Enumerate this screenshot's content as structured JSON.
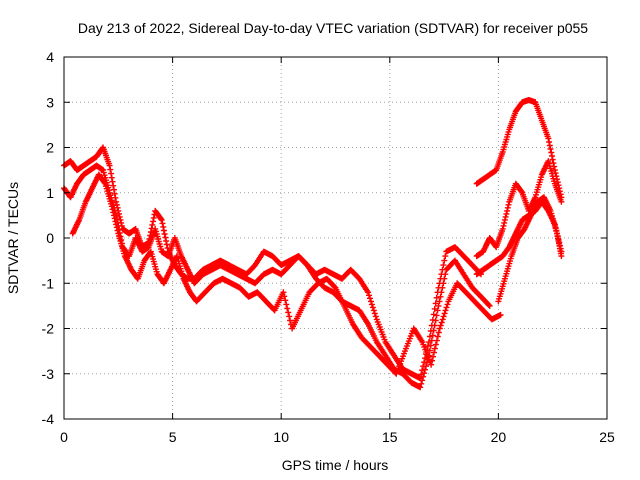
{
  "chart_data": {
    "type": "scatter",
    "title": "Day 213 of 2022, Sidereal Day-to-day VTEC variation (SDTVAR) for receiver p055",
    "xlabel": "GPS time / hours",
    "ylabel": "SDTVAR / TECUs",
    "xlim": [
      0,
      25
    ],
    "ylim": [
      -4,
      4
    ],
    "xticks": [
      0,
      5,
      10,
      15,
      20,
      25
    ],
    "yticks": [
      -4,
      -3,
      -2,
      -1,
      0,
      1,
      2,
      3,
      4
    ],
    "xtick_labels": [
      "0",
      "5",
      "10",
      "15",
      "20",
      "25"
    ],
    "ytick_labels": [
      "-4",
      "-3",
      "-2",
      "-1",
      "0",
      "1",
      "2",
      "3",
      "4"
    ],
    "grid": true,
    "marker": "+",
    "color": "#ff0000",
    "series": [
      {
        "name": "track-1",
        "x": [
          0,
          0.3,
          0.6,
          0.9,
          1.2,
          1.5,
          1.8,
          2.1,
          2.4,
          2.7,
          3.0,
          3.3,
          3.6,
          3.9,
          4.2,
          4.5,
          4.8,
          5.1,
          5.4,
          5.7,
          6.0,
          6.4,
          6.8,
          7.2,
          7.6,
          8.0,
          8.4,
          8.8,
          9.2,
          9.6,
          10.0,
          10.4,
          10.8,
          11.2,
          11.6,
          12.0,
          12.4,
          12.8,
          13.2,
          13.6,
          14.0,
          14.4,
          14.8,
          15.2,
          15.6,
          16.0,
          16.4,
          16.8,
          17.2,
          17.6,
          18.0,
          18.4,
          18.8,
          19.2
        ],
        "y": [
          1.6,
          1.7,
          1.5,
          1.6,
          1.7,
          1.8,
          2.0,
          1.6,
          0.8,
          0.2,
          0.1,
          0.2,
          -0.2,
          -0.1,
          0.6,
          0.4,
          -0.3,
          -0.6,
          -0.8,
          -0.9,
          -0.9,
          -0.7,
          -0.6,
          -0.5,
          -0.6,
          -0.7,
          -0.8,
          -0.6,
          -0.3,
          -0.4,
          -0.6,
          -0.5,
          -0.4,
          -0.6,
          -0.8,
          -0.7,
          -0.8,
          -0.9,
          -0.7,
          -0.9,
          -1.2,
          -1.8,
          -2.3,
          -2.6,
          -2.9,
          -3.0,
          -3.1,
          -2.3,
          -1.2,
          -0.3,
          -0.2,
          -0.4,
          -0.6,
          -0.8
        ]
      },
      {
        "name": "track-2",
        "x": [
          0,
          0.3,
          0.6,
          0.9,
          1.2,
          1.5,
          1.8,
          2.1,
          2.4,
          2.7,
          3.0,
          3.3,
          3.6,
          3.9,
          4.2,
          4.5,
          4.8,
          5.1,
          5.4,
          5.7,
          6.0,
          6.4,
          6.8,
          7.2,
          7.6,
          8.0,
          8.4,
          8.8,
          9.2,
          9.6,
          10.0,
          10.4,
          10.8,
          11.2,
          11.6,
          12.0,
          12.4,
          12.8,
          13.2,
          13.6,
          14.0,
          14.4,
          14.8,
          15.2,
          15.6,
          16.0,
          16.4,
          16.8,
          17.2,
          17.6,
          18.0,
          18.4,
          18.8,
          19.2,
          19.6
        ],
        "y": [
          1.1,
          0.9,
          1.2,
          1.4,
          1.5,
          1.6,
          1.5,
          1.0,
          0.5,
          -0.2,
          -0.4,
          0.0,
          -0.3,
          -0.2,
          0.2,
          -0.3,
          -0.4,
          0.0,
          -0.4,
          -0.7,
          -1.0,
          -0.8,
          -0.7,
          -0.6,
          -0.7,
          -0.8,
          -0.9,
          -1.0,
          -0.8,
          -0.7,
          -0.8,
          -0.6,
          -0.4,
          -0.6,
          -0.9,
          -1.1,
          -1.2,
          -1.4,
          -1.5,
          -1.6,
          -1.9,
          -2.3,
          -2.6,
          -2.9,
          -3.0,
          -3.2,
          -3.3,
          -2.6,
          -1.6,
          -0.7,
          -0.5,
          -0.8,
          -1.1,
          -1.3,
          -1.5
        ]
      },
      {
        "name": "track-3",
        "x": [
          0.4,
          0.7,
          1.0,
          1.3,
          1.6,
          1.9,
          2.2,
          2.5,
          2.8,
          3.1,
          3.4,
          3.7,
          4.0,
          4.3,
          4.6,
          4.9,
          5.2,
          5.5,
          5.8,
          6.1,
          6.5,
          6.9,
          7.3,
          7.7,
          8.1,
          8.5,
          8.9,
          9.3,
          9.7,
          10.1,
          10.5,
          10.9,
          11.3,
          11.7,
          12.1,
          12.5,
          12.9,
          13.3,
          13.7,
          14.1,
          14.5,
          14.9,
          15.3,
          15.7,
          16.1,
          16.5,
          16.9,
          17.3,
          17.7,
          18.1,
          18.5,
          18.9,
          19.3,
          19.7,
          20.1
        ],
        "y": [
          0.1,
          0.4,
          0.8,
          1.1,
          1.4,
          1.2,
          0.7,
          0.1,
          -0.4,
          -0.7,
          -0.9,
          -0.5,
          -0.3,
          -0.8,
          -1.0,
          -0.7,
          -0.4,
          -0.9,
          -1.2,
          -1.4,
          -1.2,
          -1.0,
          -0.9,
          -1.0,
          -1.1,
          -1.3,
          -1.2,
          -1.4,
          -1.6,
          -1.2,
          -2.0,
          -1.6,
          -1.2,
          -1.0,
          -0.9,
          -1.1,
          -1.5,
          -1.9,
          -2.2,
          -2.4,
          -2.6,
          -2.8,
          -3.0,
          -2.5,
          -2.0,
          -2.3,
          -2.8,
          -2.0,
          -1.4,
          -1.0,
          -1.2,
          -1.4,
          -1.6,
          -1.8,
          -1.7
        ]
      },
      {
        "name": "track-4",
        "x": [
          19.0,
          19.3,
          19.6,
          19.9,
          20.2,
          20.5,
          20.8,
          21.1,
          21.4,
          21.7,
          22.0,
          22.3,
          22.6,
          22.9
        ],
        "y": [
          1.2,
          1.3,
          1.4,
          1.5,
          1.9,
          2.4,
          2.8,
          3.0,
          3.05,
          3.0,
          2.6,
          2.2,
          1.5,
          0.9
        ]
      },
      {
        "name": "track-5",
        "x": [
          19.0,
          19.3,
          19.6,
          19.9,
          20.2,
          20.5,
          20.8,
          21.1,
          21.4,
          21.7,
          22.0,
          22.3,
          22.6,
          22.9
        ],
        "y": [
          -0.4,
          -0.3,
          0.0,
          -0.2,
          0.2,
          0.8,
          1.2,
          1.0,
          0.6,
          0.9,
          1.4,
          1.7,
          1.2,
          0.8
        ]
      },
      {
        "name": "track-6",
        "x": [
          19.0,
          19.3,
          19.6,
          19.9,
          20.2,
          20.5,
          20.8,
          21.1,
          21.4,
          21.7,
          22.0,
          22.3,
          22.6,
          22.9
        ],
        "y": [
          -0.8,
          -0.7,
          -0.6,
          -0.5,
          -0.4,
          -0.2,
          0.1,
          0.4,
          0.5,
          0.6,
          0.8,
          0.6,
          0.3,
          -0.3
        ]
      },
      {
        "name": "track-7",
        "x": [
          20.0,
          20.3,
          20.6,
          20.9,
          21.2,
          21.5,
          21.8,
          22.1,
          22.4,
          22.7,
          22.9
        ],
        "y": [
          -1.4,
          -0.9,
          -0.4,
          0.0,
          0.2,
          0.5,
          0.8,
          0.9,
          0.6,
          0.1,
          -0.4
        ]
      }
    ]
  }
}
